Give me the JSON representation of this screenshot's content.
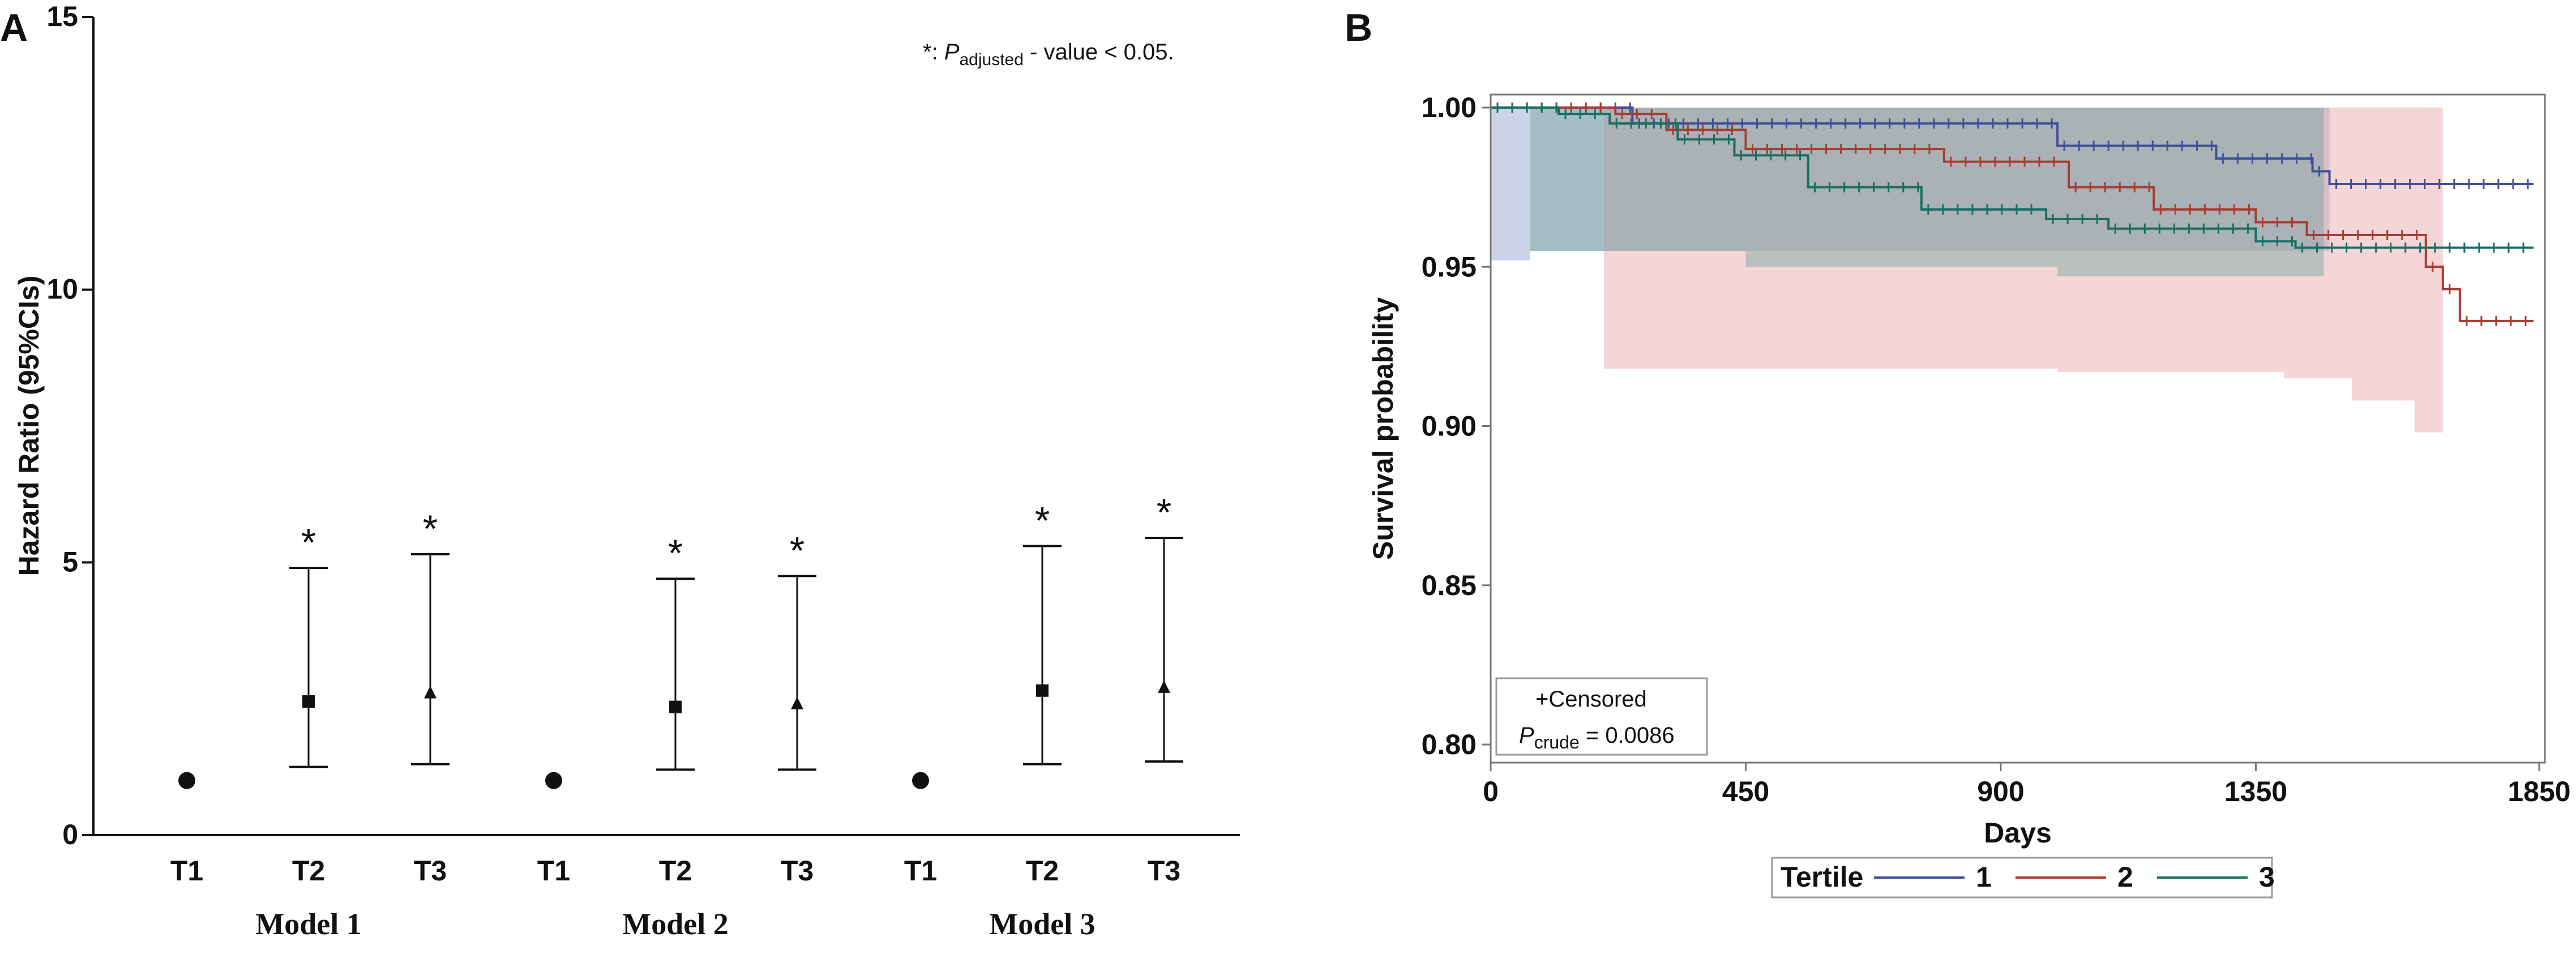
{
  "chart_data": [
    {
      "panel": "A",
      "type": "scatter",
      "subtype": "forest-errorbar",
      "ylabel": "Hazard Ratio (95%CIs)",
      "ylim": [
        0,
        15
      ],
      "yticks": [
        0,
        5,
        10,
        15
      ],
      "annotation": {
        "prefix": "*:",
        "p": "P",
        "sub": "adjusted",
        "suffix": " - value < 0.05."
      },
      "groups": [
        {
          "name": "Model 1",
          "points": [
            {
              "label": "T1",
              "hr": 1.0,
              "marker": "circle",
              "star": false
            },
            {
              "label": "T2",
              "hr": 2.45,
              "lower": 1.25,
              "upper": 4.9,
              "marker": "square",
              "star": true
            },
            {
              "label": "T3",
              "hr": 2.6,
              "lower": 1.3,
              "upper": 5.15,
              "marker": "triangle",
              "star": true
            }
          ]
        },
        {
          "name": "Model 2",
          "points": [
            {
              "label": "T1",
              "hr": 1.0,
              "marker": "circle",
              "star": false
            },
            {
              "label": "T2",
              "hr": 2.35,
              "lower": 1.2,
              "upper": 4.7,
              "marker": "square",
              "star": true
            },
            {
              "label": "T3",
              "hr": 2.4,
              "lower": 1.2,
              "upper": 4.75,
              "marker": "triangle",
              "star": true
            }
          ]
        },
        {
          "name": "Model 3",
          "points": [
            {
              "label": "T1",
              "hr": 1.0,
              "marker": "circle",
              "star": false
            },
            {
              "label": "T2",
              "hr": 2.65,
              "lower": 1.3,
              "upper": 5.3,
              "marker": "square",
              "star": true
            },
            {
              "label": "T3",
              "hr": 2.7,
              "lower": 1.35,
              "upper": 5.45,
              "marker": "triangle",
              "star": true
            }
          ]
        }
      ]
    },
    {
      "panel": "B",
      "type": "line",
      "subtype": "kaplan-meier",
      "xlabel": "Days",
      "ylabel": "Survival probability",
      "xlim": [
        0,
        1850
      ],
      "ylim": [
        0.8,
        1.0
      ],
      "xticks": [
        "0",
        "450",
        "900",
        "1350",
        "1850"
      ],
      "yticks": [
        "1.00",
        "0.95",
        "0.90",
        "0.85",
        "0.80"
      ],
      "legend_title": "Tertile",
      "inset": {
        "censored": "+Censored",
        "p": "P",
        "sub": "crude",
        "value": " = 0.0086"
      },
      "series": [
        {
          "name": "1",
          "color": "#3f4f9a",
          "fill": "#8f9dcc",
          "steps": [
            [
              0,
              1.0
            ],
            [
              250,
              0.995
            ],
            [
              1000,
              0.988
            ],
            [
              1280,
              0.984
            ],
            [
              1450,
              0.98
            ],
            [
              1480,
              0.976
            ],
            [
              1840,
              0.976
            ]
          ],
          "ci_lower": [
            [
              0,
              0.952
            ],
            [
              70,
              0.955
            ],
            [
              1480,
              0.955
            ]
          ],
          "ci_upper": [
            [
              0,
              1.0
            ],
            [
              1480,
              1.0
            ]
          ]
        },
        {
          "name": "2",
          "color": "#a83c32",
          "fill": "#e6a3a6",
          "steps": [
            [
              0,
              1.0
            ],
            [
              220,
              0.998
            ],
            [
              310,
              0.993
            ],
            [
              450,
              0.987
            ],
            [
              800,
              0.983
            ],
            [
              1020,
              0.975
            ],
            [
              1170,
              0.968
            ],
            [
              1350,
              0.964
            ],
            [
              1440,
              0.96
            ],
            [
              1650,
              0.95
            ],
            [
              1680,
              0.943
            ],
            [
              1710,
              0.933
            ],
            [
              1840,
              0.933
            ]
          ],
          "ci_lower": [
            [
              0,
              1.0
            ],
            [
              200,
              0.918
            ],
            [
              1000,
              0.917
            ],
            [
              1400,
              0.915
            ],
            [
              1520,
              0.908
            ],
            [
              1630,
              0.898
            ],
            [
              1680,
              0.898
            ]
          ],
          "ci_upper": [
            [
              0,
              1.0
            ],
            [
              1680,
              1.0
            ]
          ]
        },
        {
          "name": "3",
          "color": "#176f62",
          "fill": "#76a39d",
          "steps": [
            [
              0,
              1.0
            ],
            [
              120,
              0.998
            ],
            [
              210,
              0.995
            ],
            [
              330,
              0.99
            ],
            [
              430,
              0.985
            ],
            [
              560,
              0.975
            ],
            [
              760,
              0.968
            ],
            [
              980,
              0.965
            ],
            [
              1090,
              0.962
            ],
            [
              1350,
              0.958
            ],
            [
              1420,
              0.956
            ],
            [
              1840,
              0.956
            ]
          ],
          "ci_lower": [
            [
              0,
              1.0
            ],
            [
              70,
              0.955
            ],
            [
              450,
              0.95
            ],
            [
              1000,
              0.947
            ],
            [
              1470,
              0.947
            ]
          ],
          "ci_upper": [
            [
              0,
              1.0
            ],
            [
              1470,
              1.0
            ]
          ]
        }
      ]
    }
  ]
}
